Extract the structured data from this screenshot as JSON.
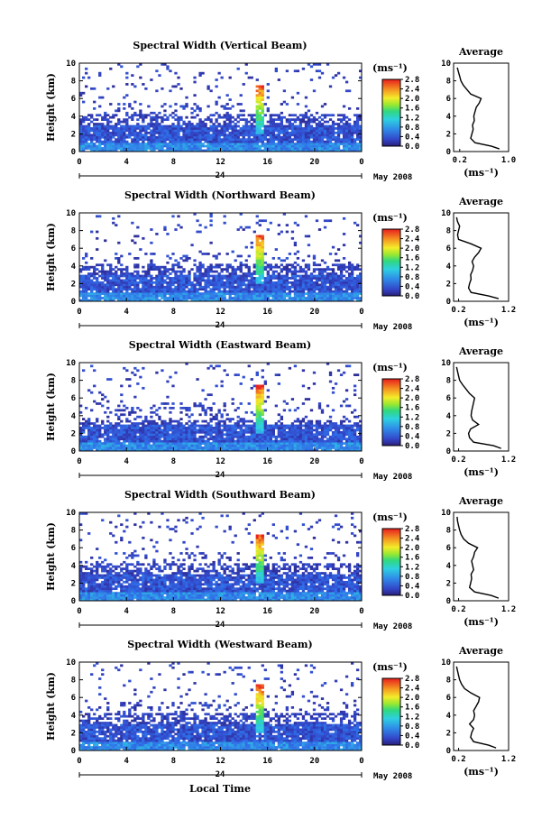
{
  "figure": {
    "xlabel": "Local Time",
    "ylabel": "Height (km)",
    "month_label": "May 2008",
    "day_label": "24",
    "colorbar_unit": "(ms⁻¹)",
    "profile_title": "Average",
    "profile_unit": "(ms⁻¹)"
  },
  "chart_data": [
    {
      "type": "heatmap",
      "title": "Spectral Width (Vertical Beam)",
      "x_range": [
        0,
        24
      ],
      "x_ticks": [
        "0",
        "4",
        "8",
        "12",
        "16",
        "20",
        "0"
      ],
      "y_range": [
        0,
        10
      ],
      "y_ticks": [
        "0",
        "2",
        "4",
        "6",
        "8",
        "10"
      ],
      "colorbar_range": [
        0.0,
        2.8
      ],
      "colorbar_ticks": [
        "0.0",
        "0.4",
        "0.8",
        "1.2",
        "1.6",
        "2.0",
        "2.4",
        "2.8"
      ],
      "profile": {
        "x_range": [
          0.1,
          1.0
        ],
        "x_ticks": [
          "0.2",
          "1.0"
        ],
        "y_range": [
          0,
          10
        ],
        "heights": [
          0.3,
          0.6,
          1.0,
          1.5,
          2.0,
          2.5,
          3.0,
          3.5,
          4.0,
          4.5,
          5.0,
          5.5,
          6.0,
          6.5,
          7.0,
          7.5,
          8.0,
          8.5,
          9.0,
          9.5
        ],
        "values": [
          0.85,
          0.72,
          0.45,
          0.38,
          0.4,
          0.42,
          0.41,
          0.44,
          0.43,
          0.45,
          0.47,
          0.52,
          0.55,
          0.38,
          0.32,
          0.26,
          0.22,
          0.2,
          0.18,
          0.16
        ]
      }
    },
    {
      "type": "heatmap",
      "title": "Spectral Width (Northward Beam)",
      "x_range": [
        0,
        24
      ],
      "x_ticks": [
        "0",
        "4",
        "8",
        "12",
        "16",
        "20",
        "0"
      ],
      "y_range": [
        0,
        10
      ],
      "y_ticks": [
        "0",
        "2",
        "4",
        "6",
        "8",
        "10"
      ],
      "colorbar_range": [
        0.0,
        2.8
      ],
      "colorbar_ticks": [
        "0.0",
        "0.4",
        "0.8",
        "1.2",
        "1.6",
        "2.0",
        "2.4",
        "2.8"
      ],
      "profile": {
        "x_range": [
          0.1,
          1.2
        ],
        "x_ticks": [
          "0.2",
          "1.2"
        ],
        "y_range": [
          0,
          10
        ],
        "heights": [
          0.3,
          0.6,
          1.0,
          1.5,
          2.0,
          2.5,
          3.0,
          3.5,
          4.0,
          4.5,
          5.0,
          5.5,
          6.0,
          6.5,
          7.0,
          7.5,
          8.0,
          8.5,
          9.0,
          9.5
        ],
        "values": [
          1.0,
          0.8,
          0.45,
          0.4,
          0.42,
          0.45,
          0.44,
          0.48,
          0.5,
          0.47,
          0.52,
          0.6,
          0.65,
          0.45,
          0.2,
          0.18,
          0.2,
          0.22,
          0.18,
          0.16
        ]
      }
    },
    {
      "type": "heatmap",
      "title": "Spectral Width (Eastward Beam)",
      "x_range": [
        0,
        24
      ],
      "x_ticks": [
        "0",
        "4",
        "8",
        "12",
        "16",
        "20",
        "0"
      ],
      "y_range": [
        0,
        10
      ],
      "y_ticks": [
        "0",
        "2",
        "4",
        "6",
        "8",
        "10"
      ],
      "colorbar_range": [
        0.0,
        2.8
      ],
      "colorbar_ticks": [
        "0.0",
        "0.4",
        "0.8",
        "1.2",
        "1.6",
        "2.0",
        "2.4",
        "2.8"
      ],
      "profile": {
        "x_range": [
          0.1,
          1.2
        ],
        "x_ticks": [
          "0.2",
          "1.2"
        ],
        "y_range": [
          0,
          10
        ],
        "heights": [
          0.3,
          0.6,
          1.0,
          1.5,
          2.0,
          2.5,
          3.0,
          3.5,
          4.0,
          4.5,
          5.0,
          5.5,
          6.0,
          6.5,
          7.0,
          7.5,
          8.0,
          8.5,
          9.0,
          9.5
        ],
        "values": [
          1.05,
          0.9,
          0.5,
          0.42,
          0.4,
          0.44,
          0.6,
          0.48,
          0.45,
          0.46,
          0.48,
          0.5,
          0.52,
          0.42,
          0.35,
          0.28,
          0.22,
          0.2,
          0.18,
          0.16
        ]
      }
    },
    {
      "type": "heatmap",
      "title": "Spectral Width (Southward Beam)",
      "x_range": [
        0,
        24
      ],
      "x_ticks": [
        "0",
        "4",
        "8",
        "12",
        "16",
        "20",
        "0"
      ],
      "y_range": [
        0,
        10
      ],
      "y_ticks": [
        "0",
        "2",
        "4",
        "6",
        "8",
        "10"
      ],
      "colorbar_range": [
        0.0,
        2.8
      ],
      "colorbar_ticks": [
        "0.0",
        "0.4",
        "0.8",
        "1.2",
        "1.6",
        "2.0",
        "2.4",
        "2.8"
      ],
      "profile": {
        "x_range": [
          0.1,
          1.2
        ],
        "x_ticks": [
          "0.2",
          "1.2"
        ],
        "y_range": [
          0,
          10
        ],
        "heights": [
          0.3,
          0.6,
          1.0,
          1.5,
          2.0,
          2.5,
          3.0,
          3.5,
          4.0,
          4.5,
          5.0,
          5.5,
          6.0,
          6.5,
          7.0,
          7.5,
          8.0,
          8.5,
          9.0,
          9.5
        ],
        "values": [
          1.0,
          0.85,
          0.52,
          0.42,
          0.44,
          0.46,
          0.45,
          0.5,
          0.48,
          0.46,
          0.5,
          0.52,
          0.58,
          0.4,
          0.3,
          0.25,
          0.22,
          0.2,
          0.18,
          0.17
        ]
      }
    },
    {
      "type": "heatmap",
      "title": "Spectral Width (Westward Beam)",
      "x_range": [
        0,
        24
      ],
      "x_ticks": [
        "0",
        "4",
        "8",
        "12",
        "16",
        "20",
        "0"
      ],
      "y_range": [
        0,
        10
      ],
      "y_ticks": [
        "0",
        "2",
        "4",
        "6",
        "8",
        "10"
      ],
      "colorbar_range": [
        0.0,
        2.8
      ],
      "colorbar_ticks": [
        "0.0",
        "0.4",
        "0.8",
        "1.2",
        "1.6",
        "2.0",
        "2.4",
        "2.8"
      ],
      "profile": {
        "x_range": [
          0.1,
          1.2
        ],
        "x_ticks": [
          "0.2",
          "1.2"
        ],
        "y_range": [
          0,
          10
        ],
        "heights": [
          0.3,
          0.6,
          1.0,
          1.5,
          2.0,
          2.5,
          3.0,
          3.5,
          4.0,
          4.5,
          5.0,
          5.5,
          6.0,
          6.5,
          7.0,
          7.5,
          8.0,
          8.5,
          9.0,
          9.5
        ],
        "values": [
          0.95,
          0.8,
          0.5,
          0.44,
          0.46,
          0.5,
          0.42,
          0.5,
          0.52,
          0.5,
          0.55,
          0.6,
          0.62,
          0.45,
          0.32,
          0.26,
          0.22,
          0.2,
          0.18,
          0.16
        ]
      }
    }
  ]
}
